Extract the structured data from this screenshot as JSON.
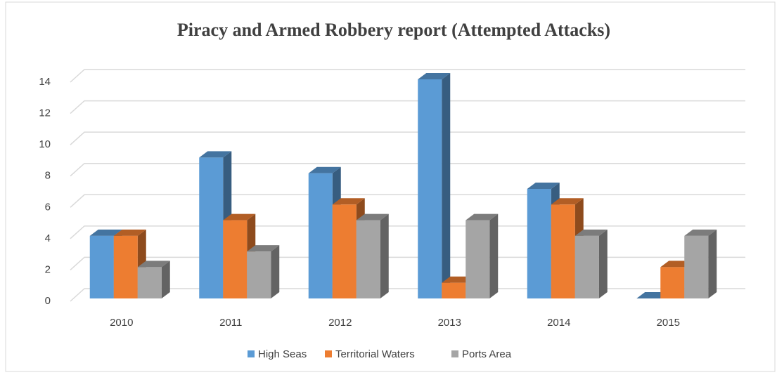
{
  "chart_data": {
    "type": "bar3d",
    "title": "Piracy and Armed Robbery report (Attempted Attacks)",
    "categories": [
      "2010",
      "2011",
      "2012",
      "2013",
      "2014",
      "2015"
    ],
    "series": [
      {
        "name": "High Seas",
        "color": "#5b9bd5",
        "values": [
          4,
          9,
          8,
          14,
          7,
          0
        ]
      },
      {
        "name": "Territorial Waters",
        "color": "#ed7d31",
        "values": [
          4,
          5,
          6,
          1,
          6,
          2
        ]
      },
      {
        "name": "Ports Area",
        "color": "#a5a5a5",
        "values": [
          2,
          3,
          5,
          5,
          4,
          4
        ]
      }
    ],
    "ylim": [
      0,
      14
    ],
    "yticks": [
      0,
      2,
      4,
      6,
      8,
      10,
      12,
      14
    ],
    "grid": true,
    "legend": "bottom"
  }
}
